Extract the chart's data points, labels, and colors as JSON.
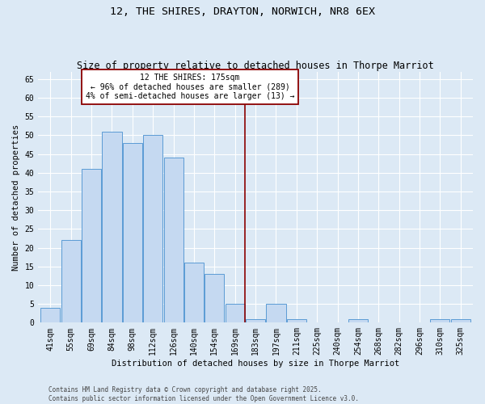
{
  "title1": "12, THE SHIRES, DRAYTON, NORWICH, NR8 6EX",
  "title2": "Size of property relative to detached houses in Thorpe Marriot",
  "xlabel": "Distribution of detached houses by size in Thorpe Marriot",
  "ylabel": "Number of detached properties",
  "categories": [
    "41sqm",
    "55sqm",
    "69sqm",
    "84sqm",
    "98sqm",
    "112sqm",
    "126sqm",
    "140sqm",
    "154sqm",
    "169sqm",
    "183sqm",
    "197sqm",
    "211sqm",
    "225sqm",
    "240sqm",
    "254sqm",
    "268sqm",
    "282sqm",
    "296sqm",
    "310sqm",
    "325sqm"
  ],
  "values": [
    4,
    22,
    41,
    51,
    48,
    50,
    44,
    16,
    13,
    5,
    1,
    5,
    1,
    0,
    0,
    1,
    0,
    0,
    0,
    1,
    1
  ],
  "bar_color": "#c5d9f1",
  "bar_edge_color": "#5b9bd5",
  "marker_color": "#8b0000",
  "annotation_text": "12 THE SHIRES: 175sqm\n← 96% of detached houses are smaller (289)\n4% of semi-detached houses are larger (13) →",
  "ylim": [
    0,
    67
  ],
  "yticks": [
    0,
    5,
    10,
    15,
    20,
    25,
    30,
    35,
    40,
    45,
    50,
    55,
    60,
    65
  ],
  "background_color": "#dce9f5",
  "footer_text": "Contains HM Land Registry data © Crown copyright and database right 2025.\nContains public sector information licensed under the Open Government Licence v3.0.",
  "grid_color": "#ffffff",
  "title_fontsize": 9.5,
  "subtitle_fontsize": 8.5,
  "axis_fontsize": 7.5,
  "tick_fontsize": 7,
  "annotation_fontsize": 7,
  "footer_fontsize": 5.5
}
